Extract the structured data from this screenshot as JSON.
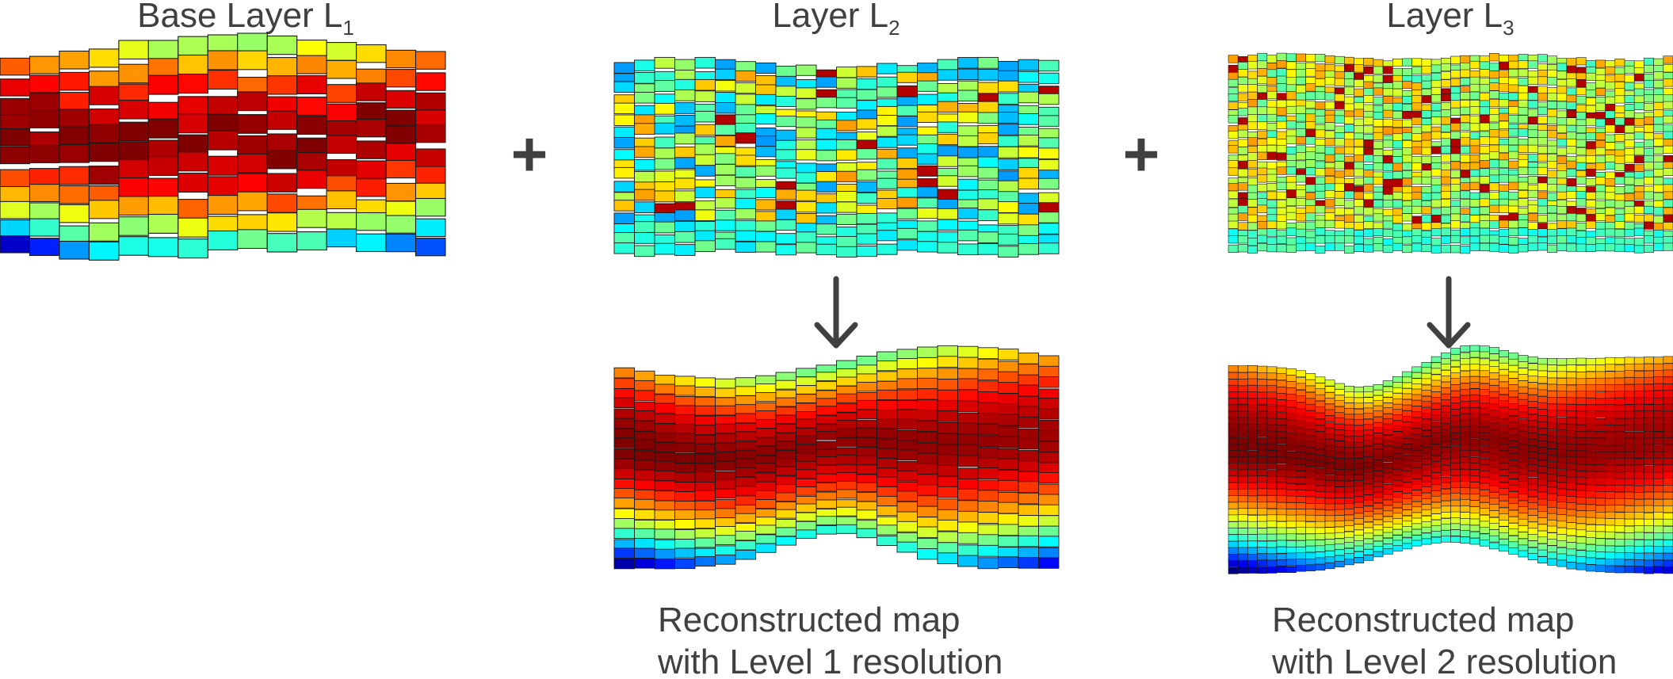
{
  "panels": {
    "base": {
      "title_main": "Base Layer L",
      "title_sub": "1"
    },
    "layer2": {
      "title_main": "Layer L",
      "title_sub": "2"
    },
    "layer3": {
      "title_main": "Layer L",
      "title_sub": "3"
    }
  },
  "operators": {
    "plus_1": "+",
    "plus_2": "+"
  },
  "captions": {
    "level1": {
      "line1": "Reconstructed map",
      "line2": "with Level 1 resolution"
    },
    "level2": {
      "line1": "Reconstructed map",
      "line2": "with Level 2 resolution"
    }
  },
  "colormap": "jet",
  "colors": {
    "text": "#404040",
    "arrow": "#404040",
    "cell_stroke": "#1a1a1a"
  }
}
